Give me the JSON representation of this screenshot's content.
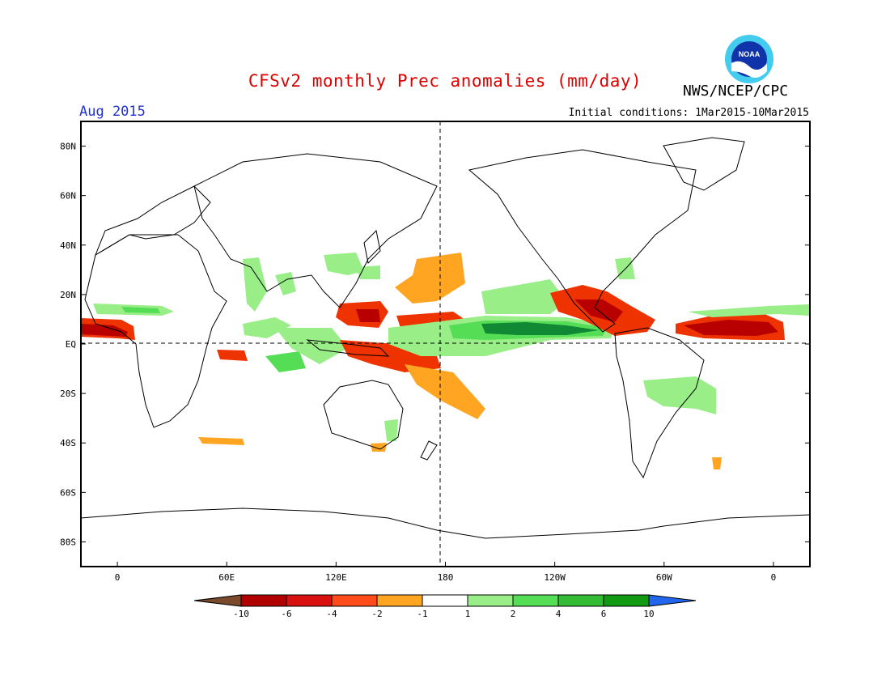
{
  "header": {
    "title": "CFSv2 monthly Prec anomalies (mm/day)",
    "agency": "NWS/NCEP/CPC",
    "month": "Aug 2015",
    "initial_conditions": "Initial conditions: 1Mar2015-10Mar2015",
    "logo_text": "NOAA"
  },
  "map": {
    "projection": "equirectangular",
    "lat_range": [
      -90,
      90
    ],
    "lon_range": [
      -20,
      380
    ],
    "lat_ticks": [
      "80N",
      "60N",
      "40N",
      "20N",
      "EQ",
      "20S",
      "40S",
      "60S",
      "80S"
    ],
    "lon_ticks": [
      "0",
      "60E",
      "120E",
      "180",
      "120W",
      "60W",
      "0"
    ],
    "dashed_lines": [
      "equator",
      "dateline"
    ]
  },
  "colorbar": {
    "labels": [
      "-10",
      "-6",
      "-4",
      "-2",
      "-1",
      "1",
      "2",
      "4",
      "6",
      "10"
    ],
    "colors": [
      "#7a4a2a",
      "#b00000",
      "#d81010",
      "#ff4a1a",
      "#ffa522",
      "#ffffff",
      "#99ee88",
      "#55dd55",
      "#33bb33",
      "#119911",
      "#2266ee"
    ]
  },
  "anomaly_colors": {
    "dry_strong": "#b80000",
    "dry_moderate": "#ee3300",
    "dry_weak": "#ffa522",
    "wet_weak": "#99ee88",
    "wet_moderate": "#44cc55",
    "wet_strong": "#118833"
  }
}
